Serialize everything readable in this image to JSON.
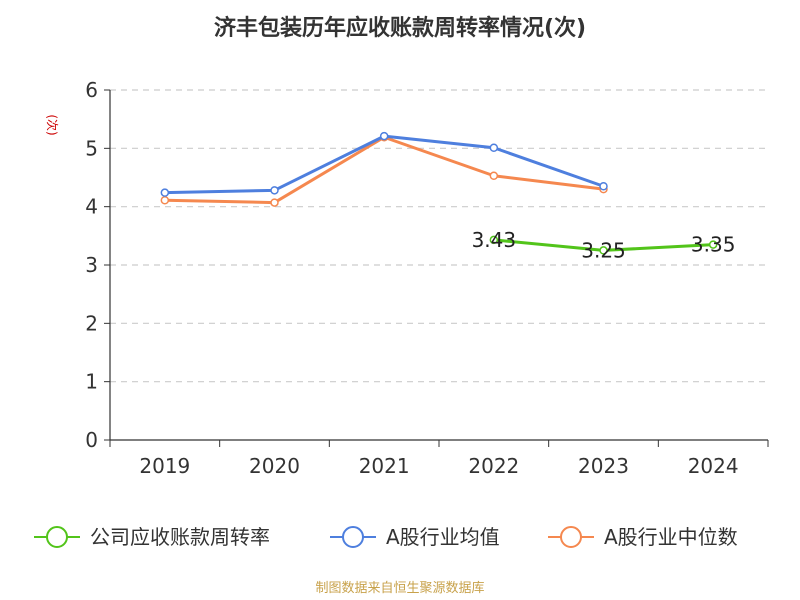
{
  "chart_data": {
    "type": "line",
    "title": "济丰包装历年应收账款周转率情况(次)",
    "ylabel": "(次)",
    "xlabel": "",
    "categories": [
      "2019",
      "2020",
      "2021",
      "2022",
      "2023",
      "2024"
    ],
    "ylim": [
      0,
      6
    ],
    "yticks": [
      0,
      1,
      2,
      3,
      4,
      5,
      6
    ],
    "grid": true,
    "legend_position": "bottom",
    "series": [
      {
        "name": "公司应收账款周转率",
        "color": "#52c41a",
        "values": [
          null,
          null,
          null,
          3.43,
          3.25,
          3.35
        ],
        "labels": [
          "",
          "",
          "",
          "3.43",
          "3.25",
          "3.35"
        ]
      },
      {
        "name": "A股行业均值",
        "color": "#4e7fde",
        "values": [
          4.24,
          4.28,
          5.21,
          5.01,
          4.35,
          null
        ]
      },
      {
        "name": "A股行业中位数",
        "color": "#f5884f",
        "values": [
          4.11,
          4.07,
          5.19,
          4.53,
          4.3,
          null
        ]
      }
    ]
  },
  "source_note": "制图数据来自恒生聚源数据库"
}
